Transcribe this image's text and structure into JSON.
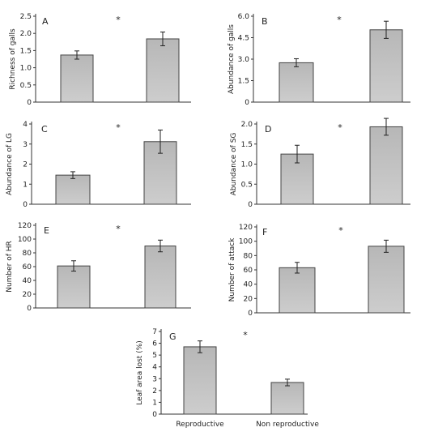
{
  "chart_data": [
    {
      "type": "bar",
      "panel": "A",
      "ylabel": "Richness of galls",
      "ylim": [
        0,
        2.5
      ],
      "yticks": [
        "0",
        "0.5",
        "1.0",
        "1.5",
        "2.0",
        "2.5"
      ],
      "categories": [
        "Reproductive",
        "Non reproductive"
      ],
      "values": [
        1.37,
        1.84
      ],
      "errors": [
        0.12,
        0.2
      ],
      "annotation": "*"
    },
    {
      "type": "bar",
      "panel": "B",
      "ylabel": "Abundance of galls",
      "ylim": [
        0,
        6
      ],
      "yticks": [
        "0",
        "1.5",
        "3.0",
        "4.5",
        "6.0"
      ],
      "categories": [
        "Reproductive",
        "Non reproductive"
      ],
      "values": [
        2.75,
        5.05
      ],
      "errors": [
        0.28,
        0.6
      ],
      "annotation": "*"
    },
    {
      "type": "bar",
      "panel": "C",
      "ylabel": "Abundance of LG",
      "ylim": [
        0,
        4
      ],
      "yticks": [
        "0",
        "1",
        "2",
        "3",
        "4"
      ],
      "categories": [
        "Reproductive",
        "Non reproductive"
      ],
      "values": [
        1.45,
        3.12
      ],
      "errors": [
        0.17,
        0.58
      ],
      "annotation": "*"
    },
    {
      "type": "bar",
      "panel": "D",
      "ylabel": "Abundance of SG",
      "ylim": [
        0,
        2
      ],
      "yticks": [
        "0",
        "0.5",
        "1.0",
        "1.5",
        "2.0"
      ],
      "categories": [
        "Reproductive",
        "Non reproductive"
      ],
      "values": [
        1.25,
        1.93
      ],
      "errors": [
        0.22,
        0.21
      ],
      "annotation": "*"
    },
    {
      "type": "bar",
      "panel": "E",
      "ylabel": "Number of HR",
      "ylim": [
        0,
        120
      ],
      "yticks": [
        "0",
        "20",
        "40",
        "60",
        "80",
        "100",
        "120"
      ],
      "categories": [
        "Reproductive",
        "Non reproductive"
      ],
      "values": [
        61,
        90
      ],
      "errors": [
        7.5,
        8.5
      ],
      "annotation": "*"
    },
    {
      "type": "bar",
      "panel": "F",
      "ylabel": "Number of attack",
      "ylim": [
        0,
        120
      ],
      "yticks": [
        "0",
        "20",
        "40",
        "60",
        "80",
        "100",
        "120"
      ],
      "categories": [
        "Reproductive",
        "Non reproductive"
      ],
      "values": [
        63,
        93
      ],
      "errors": [
        7.5,
        8.5
      ],
      "annotation": "*"
    },
    {
      "type": "bar",
      "panel": "G",
      "ylabel": "Leaf area lost (%)",
      "ylim": [
        0,
        7
      ],
      "yticks": [
        "0",
        "1",
        "2",
        "3",
        "4",
        "5",
        "6",
        "7"
      ],
      "categories": [
        "Reproductive",
        "Non reproductive"
      ],
      "category_labels": [
        "Reproductive",
        "Non reproductive"
      ],
      "values": [
        5.7,
        2.68
      ],
      "errors": [
        0.5,
        0.28
      ],
      "annotation": "*"
    }
  ]
}
